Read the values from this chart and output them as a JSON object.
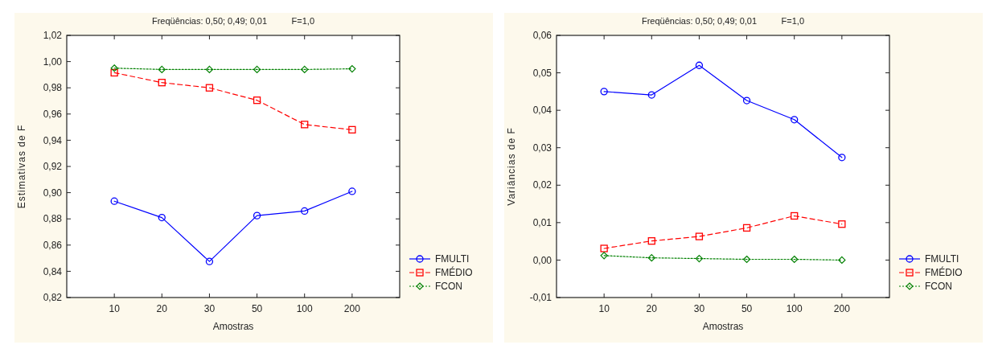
{
  "chart_data": [
    {
      "type": "line",
      "title": "Freqüências: 0,50; 0,49; 0,01          F=1,0",
      "xlabel": "Amostras",
      "ylabel": "Estimativas de F",
      "categories": [
        "10",
        "20",
        "30",
        "50",
        "100",
        "200"
      ],
      "series": [
        {
          "name": "FMULTI",
          "color": "#0000ff",
          "marker": "circle",
          "line_style": "solid",
          "values": [
            0.8935,
            0.881,
            0.8475,
            0.8825,
            0.886,
            0.901
          ]
        },
        {
          "name": "FMÉDIO",
          "color": "#ff0000",
          "marker": "square",
          "line_style": "dashed",
          "values": [
            0.9915,
            0.984,
            0.98,
            0.9705,
            0.952,
            0.948
          ]
        },
        {
          "name": "FCON",
          "color": "#008000",
          "marker": "diamond",
          "line_style": "dotted",
          "values": [
            0.995,
            0.994,
            0.994,
            0.994,
            0.994,
            0.9945
          ]
        }
      ],
      "ylim": [
        0.82,
        1.02
      ],
      "yticks": [
        {
          "value": 0.82,
          "label": "0,82"
        },
        {
          "value": 0.84,
          "label": "0,84"
        },
        {
          "value": 0.86,
          "label": "0,86"
        },
        {
          "value": 0.88,
          "label": "0,88"
        },
        {
          "value": 0.9,
          "label": "0,90"
        },
        {
          "value": 0.92,
          "label": "0,92"
        },
        {
          "value": 0.94,
          "label": "0,94"
        },
        {
          "value": 0.96,
          "label": "0,96"
        },
        {
          "value": 0.98,
          "label": "0,98"
        },
        {
          "value": 1.0,
          "label": "1,00"
        },
        {
          "value": 1.02,
          "label": "1,02"
        }
      ],
      "grid": false,
      "legend": "bottom right"
    },
    {
      "type": "line",
      "title": "Freqüências: 0,50; 0,49; 0,01          F=1,0",
      "xlabel": "Amostras",
      "ylabel": "Variâncias de F",
      "categories": [
        "10",
        "20",
        "30",
        "50",
        "100",
        "200"
      ],
      "series": [
        {
          "name": "FMULTI",
          "color": "#0000ff",
          "marker": "circle",
          "line_style": "solid",
          "values": [
            0.045,
            0.0441,
            0.052,
            0.0426,
            0.0375,
            0.0274
          ]
        },
        {
          "name": "FMÉDIO",
          "color": "#ff0000",
          "marker": "square",
          "line_style": "dashed",
          "values": [
            0.0031,
            0.0051,
            0.0063,
            0.0086,
            0.0118,
            0.0096
          ]
        },
        {
          "name": "FCON",
          "color": "#008000",
          "marker": "diamond",
          "line_style": "dotted",
          "values": [
            0.0012,
            0.0006,
            0.0004,
            0.0002,
            0.0002,
            0.0
          ]
        }
      ],
      "ylim": [
        -0.01,
        0.06
      ],
      "yticks": [
        {
          "value": -0.01,
          "label": "-0,01"
        },
        {
          "value": 0.0,
          "label": "0,00"
        },
        {
          "value": 0.01,
          "label": "0,01"
        },
        {
          "value": 0.02,
          "label": "0,02"
        },
        {
          "value": 0.03,
          "label": "0,03"
        },
        {
          "value": 0.04,
          "label": "0,04"
        },
        {
          "value": 0.05,
          "label": "0,05"
        },
        {
          "value": 0.06,
          "label": "0,06"
        }
      ],
      "grid": false,
      "legend": "bottom right"
    }
  ]
}
